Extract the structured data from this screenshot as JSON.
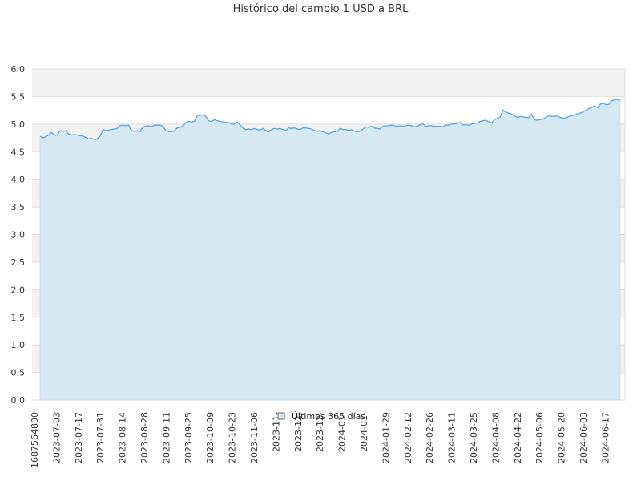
{
  "chart_data": {
    "type": "area",
    "title": "Histórico del cambio 1 USD a BRL",
    "xlabel": "",
    "ylabel": "",
    "ylim": [
      0,
      6
    ],
    "yticks": [
      "0.0",
      "0.5",
      "1.0",
      "1.5",
      "2.0",
      "2.5",
      "3.0",
      "3.5",
      "4.0",
      "4.5",
      "5.0",
      "5.5",
      "6.0"
    ],
    "xticks": [
      "1687564800",
      "2023-07-03",
      "2023-07-17",
      "2023-07-31",
      "2023-08-14",
      "2023-08-28",
      "2023-09-11",
      "2023-09-25",
      "2023-10-09",
      "2023-10-23",
      "2023-11-06",
      "2023-11-",
      "2023-12-",
      "2023-12-",
      "2024-01-",
      "2024-01-",
      "2024-01-29",
      "2024-02-12",
      "2024-02-26",
      "2024-03-11",
      "2024-03-25",
      "2024-04-08",
      "2024-04-22",
      "2024-05-06",
      "2024-05-20",
      "2024-06-03",
      "2024-06-17"
    ],
    "grid": true,
    "legend_position": "bottom",
    "colors": {
      "line": "#5ea0e0",
      "fill": "#d6e9f2",
      "band": "#f2f2f2",
      "grid": "#dddddd"
    },
    "series": [
      {
        "name": "Últimos 365 días",
        "values": [
          4.78,
          4.75,
          4.77,
          4.8,
          4.85,
          4.8,
          4.8,
          4.88,
          4.87,
          4.88,
          4.82,
          4.8,
          4.81,
          4.8,
          4.79,
          4.78,
          4.76,
          4.73,
          4.74,
          4.72,
          4.73,
          4.78,
          4.9,
          4.88,
          4.89,
          4.9,
          4.91,
          4.92,
          4.97,
          4.98,
          4.97,
          4.98,
          4.88,
          4.87,
          4.88,
          4.86,
          4.95,
          4.96,
          4.97,
          4.95,
          4.98,
          4.98,
          4.98,
          4.96,
          4.88,
          4.87,
          4.86,
          4.88,
          4.93,
          4.94,
          4.97,
          5.02,
          5.05,
          5.04,
          5.05,
          5.15,
          5.17,
          5.16,
          5.14,
          5.06,
          5.05,
          5.08,
          5.06,
          5.05,
          5.04,
          5.03,
          5.03,
          5.0,
          5.0,
          5.04,
          4.98,
          4.93,
          4.9,
          4.91,
          4.9,
          4.92,
          4.9,
          4.89,
          4.92,
          4.88,
          4.86,
          4.9,
          4.92,
          4.91,
          4.92,
          4.9,
          4.88,
          4.93,
          4.92,
          4.93,
          4.91,
          4.9,
          4.93,
          4.93,
          4.92,
          4.91,
          4.88,
          4.87,
          4.88,
          4.86,
          4.84,
          4.82,
          4.85,
          4.86,
          4.87,
          4.92,
          4.9,
          4.9,
          4.88,
          4.9,
          4.87,
          4.86,
          4.87,
          4.91,
          4.95,
          4.94,
          4.96,
          4.93,
          4.92,
          4.91,
          4.96,
          4.97,
          4.97,
          4.98,
          4.97,
          4.96,
          4.97,
          4.96,
          4.97,
          4.98,
          4.97,
          4.95,
          4.96,
          4.99,
          5.0,
          4.96,
          4.97,
          4.97,
          4.96,
          4.96,
          4.96,
          4.95,
          4.98,
          4.98,
          5.0,
          5.0,
          5.01,
          5.03,
          4.98,
          4.99,
          4.98,
          5.0,
          5.01,
          5.02,
          5.05,
          5.06,
          5.07,
          5.04,
          5.02,
          5.08,
          5.1,
          5.13,
          5.25,
          5.22,
          5.2,
          5.18,
          5.15,
          5.12,
          5.14,
          5.13,
          5.12,
          5.12,
          5.18,
          5.08,
          5.07,
          5.08,
          5.09,
          5.12,
          5.15,
          5.14,
          5.14,
          5.15,
          5.12,
          5.11,
          5.11,
          5.14,
          5.15,
          5.16,
          5.18,
          5.2,
          5.22,
          5.25,
          5.28,
          5.3,
          5.33,
          5.3,
          5.36,
          5.38,
          5.35,
          5.36,
          5.42,
          5.44,
          5.45,
          5.43
        ]
      }
    ]
  }
}
